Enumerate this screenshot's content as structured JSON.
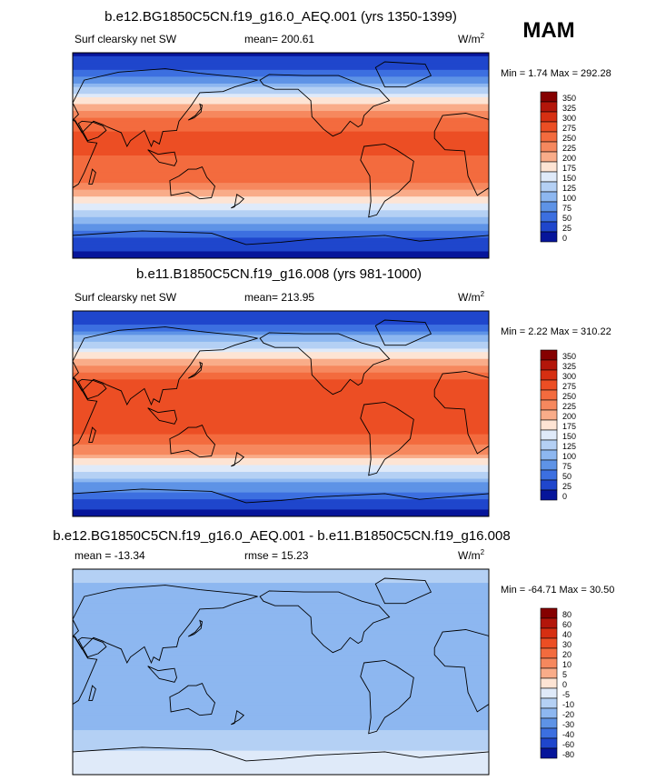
{
  "season": "MAM",
  "chart_data": [
    {
      "type": "heatmap",
      "title": "b.e12.BG1850C5CN.f19_g16.0_AEQ.001 (yrs 1350-1399)",
      "variable": "Surf clearsky net SW",
      "mean_label": "mean= 200.61",
      "units": "W/m",
      "units_sup": "2",
      "minmax_label": "Min =   1.74  Max = 292.28",
      "levels": [
        "350",
        "325",
        "300",
        "275",
        "250",
        "225",
        "200",
        "175",
        "150",
        "125",
        "100",
        "75",
        "50",
        "25",
        "0"
      ],
      "colors": [
        "#850000",
        "#b3160a",
        "#d62f12",
        "#ec4e24",
        "#f36b3e",
        "#f6885e",
        "#f9ac89",
        "#fde4d4",
        "#dfeaf9",
        "#b4d0f4",
        "#8db7f0",
        "#5e93e6",
        "#3c6fe0",
        "#1f46cc",
        "#06159a"
      ],
      "zonal_mean_profile": [
        {
          "lat": 90,
          "value": 20
        },
        {
          "lat": 75,
          "value": 45
        },
        {
          "lat": 60,
          "value": 120
        },
        {
          "lat": 45,
          "value": 200
        },
        {
          "lat": 30,
          "value": 265
        },
        {
          "lat": 15,
          "value": 280
        },
        {
          "lat": 0,
          "value": 275
        },
        {
          "lat": -15,
          "value": 270
        },
        {
          "lat": -30,
          "value": 230
        },
        {
          "lat": -45,
          "value": 165
        },
        {
          "lat": -60,
          "value": 95
        },
        {
          "lat": -75,
          "value": 40
        },
        {
          "lat": -90,
          "value": 10
        }
      ]
    },
    {
      "type": "heatmap",
      "title": "b.e11.B1850C5CN.f19_g16.008 (yrs 981-1000)",
      "variable": "Surf clearsky net SW",
      "mean_label": "mean= 213.95",
      "units": "W/m",
      "units_sup": "2",
      "minmax_label": "Min =   2.22  Max = 310.22",
      "levels": [
        "350",
        "325",
        "300",
        "275",
        "250",
        "225",
        "200",
        "175",
        "150",
        "125",
        "100",
        "75",
        "50",
        "25",
        "0"
      ],
      "colors": [
        "#850000",
        "#b3160a",
        "#d62f12",
        "#ec4e24",
        "#f36b3e",
        "#f6885e",
        "#f9ac89",
        "#fde4d4",
        "#dfeaf9",
        "#b4d0f4",
        "#8db7f0",
        "#5e93e6",
        "#3c6fe0",
        "#1f46cc",
        "#06159a"
      ],
      "zonal_mean_profile": [
        {
          "lat": 90,
          "value": 25
        },
        {
          "lat": 75,
          "value": 60
        },
        {
          "lat": 60,
          "value": 140
        },
        {
          "lat": 45,
          "value": 215
        },
        {
          "lat": 30,
          "value": 280
        },
        {
          "lat": 15,
          "value": 300
        },
        {
          "lat": 0,
          "value": 290
        },
        {
          "lat": -15,
          "value": 285
        },
        {
          "lat": -30,
          "value": 245
        },
        {
          "lat": -45,
          "value": 180
        },
        {
          "lat": -60,
          "value": 105
        },
        {
          "lat": -75,
          "value": 45
        },
        {
          "lat": -90,
          "value": 10
        }
      ]
    },
    {
      "type": "heatmap",
      "title": "b.e12.BG1850C5CN.f19_g16.0_AEQ.001 - b.e11.B1850C5CN.f19_g16.008",
      "mean_label": "mean = -13.34",
      "rmse_label": "rmse =  15.23",
      "units": "W/m",
      "units_sup": "2",
      "minmax_label": "Min = -64.71  Max =  30.50",
      "levels": [
        "80",
        "60",
        "40",
        "30",
        "20",
        "10",
        "5",
        "0",
        "-5",
        "-10",
        "-20",
        "-30",
        "-40",
        "-60",
        "-80"
      ],
      "colors": [
        "#850000",
        "#b3160a",
        "#d62f12",
        "#ec4e24",
        "#f36b3e",
        "#f6885e",
        "#f9ac89",
        "#fde4d4",
        "#dfeaf9",
        "#b4d0f4",
        "#8db7f0",
        "#5e93e6",
        "#3c6fe0",
        "#1f46cc",
        "#06159a"
      ],
      "zonal_mean_profile": [
        {
          "lat": 90,
          "value": -5
        },
        {
          "lat": 75,
          "value": -12
        },
        {
          "lat": 60,
          "value": -18
        },
        {
          "lat": 45,
          "value": -15
        },
        {
          "lat": 30,
          "value": -15
        },
        {
          "lat": 15,
          "value": -18
        },
        {
          "lat": 0,
          "value": -15
        },
        {
          "lat": -15,
          "value": -15
        },
        {
          "lat": -30,
          "value": -15
        },
        {
          "lat": -45,
          "value": -12
        },
        {
          "lat": -60,
          "value": -8
        },
        {
          "lat": -75,
          "value": -3
        },
        {
          "lat": -90,
          "value": -1
        }
      ]
    }
  ]
}
